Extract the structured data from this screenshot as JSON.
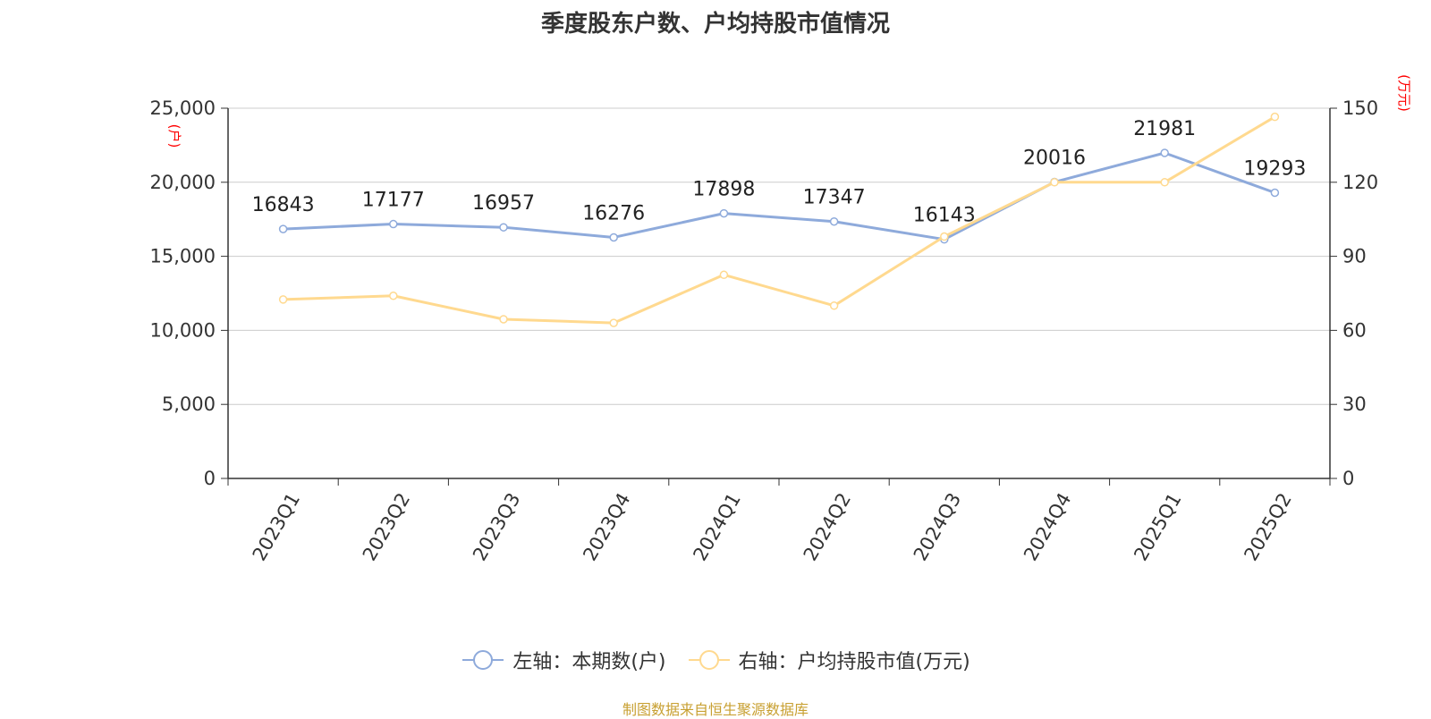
{
  "title": "季度股东户数、户均持股市值情况",
  "left_axis_unit": "(户)",
  "right_axis_unit": "(万元)",
  "legend": [
    {
      "label": "左轴：本期数(户)",
      "color": "#8eaadb"
    },
    {
      "label": "右轴：户均持股市值(万元)",
      "color": "#ffd98f"
    }
  ],
  "source": "制图数据来自恒生聚源数据库",
  "chart_data": {
    "type": "line",
    "categories": [
      "2023Q1",
      "2023Q2",
      "2023Q3",
      "2023Q4",
      "2024Q1",
      "2024Q2",
      "2024Q3",
      "2024Q4",
      "2025Q1",
      "2025Q2"
    ],
    "series": [
      {
        "name": "左轴：本期数(户)",
        "axis": "left",
        "color": "#8eaadb",
        "values": [
          16843,
          17177,
          16957,
          16276,
          17898,
          17347,
          16143,
          20016,
          21981,
          19293
        ],
        "show_labels": true
      },
      {
        "name": "右轴：户均持股市值(万元)",
        "axis": "right",
        "color": "#ffd98f",
        "values": [
          72.5,
          74,
          64.5,
          63,
          82.5,
          70,
          98,
          120,
          120,
          146.5
        ],
        "show_labels": false
      }
    ],
    "left_axis": {
      "min": 0,
      "max": 25000,
      "ticks": [
        "0",
        "5,000",
        "10,000",
        "15,000",
        "20,000",
        "25,000"
      ]
    },
    "right_axis": {
      "min": 0,
      "max": 150,
      "ticks": [
        "0",
        "30",
        "60",
        "90",
        "120",
        "150"
      ]
    },
    "grid": true,
    "legend_position": "bottom"
  }
}
